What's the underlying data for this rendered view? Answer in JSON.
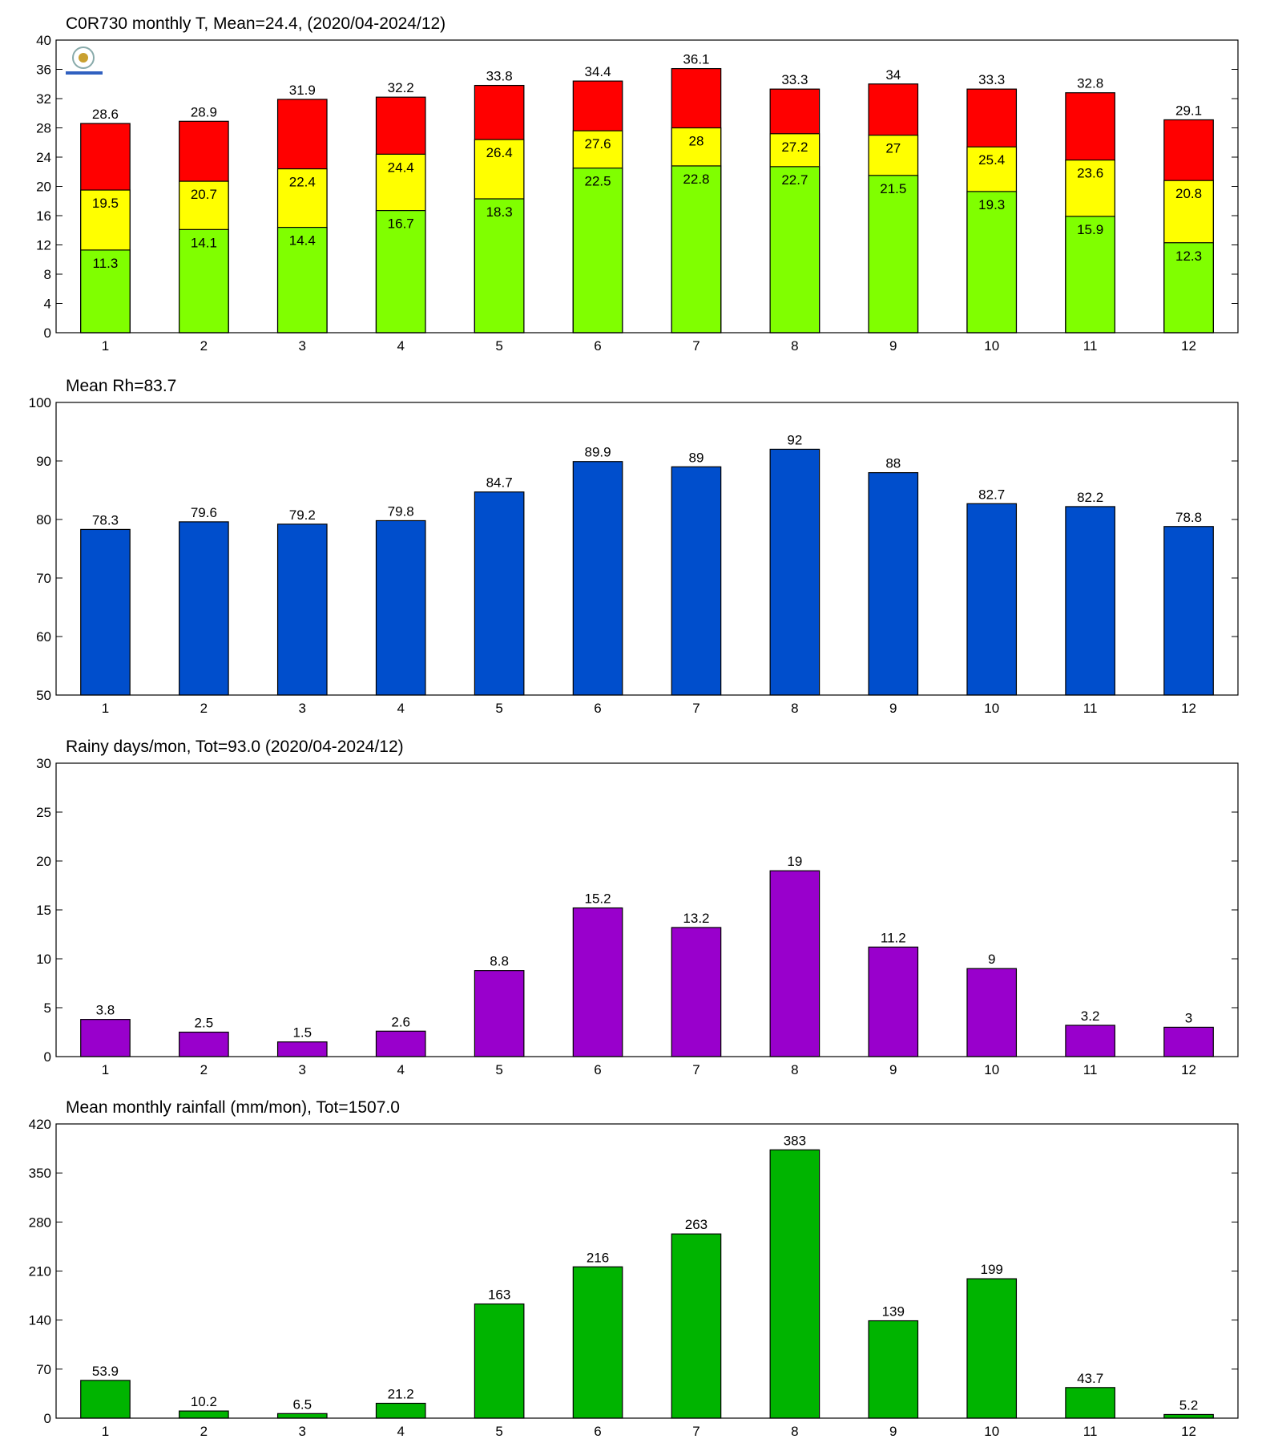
{
  "chart_data": [
    {
      "type": "bar",
      "overlay": true,
      "title": "C0R730 monthly T, Mean=24.4, (2020/04-2024/12)",
      "categories": [
        "1",
        "2",
        "3",
        "4",
        "5",
        "6",
        "7",
        "8",
        "9",
        "10",
        "11",
        "12"
      ],
      "series": [
        {
          "color": "#ff0000",
          "values": [
            28.6,
            28.9,
            31.9,
            32.2,
            33.8,
            34.4,
            36.1,
            33.3,
            34,
            33.3,
            32.8,
            29.1
          ]
        },
        {
          "color": "#ffff00",
          "values": [
            19.5,
            20.7,
            22.4,
            24.4,
            26.4,
            27.6,
            28,
            27.2,
            27,
            25.4,
            23.6,
            20.8
          ]
        },
        {
          "color": "#80ff00",
          "values": [
            11.3,
            14.1,
            14.4,
            16.7,
            18.3,
            22.5,
            22.8,
            22.7,
            21.5,
            19.3,
            15.9,
            12.3
          ]
        }
      ],
      "ylim": [
        0,
        40
      ],
      "yticks": [
        0,
        4,
        8,
        12,
        16,
        20,
        24,
        28,
        32,
        36,
        40
      ]
    },
    {
      "type": "bar",
      "title": "Mean Rh=83.7",
      "categories": [
        "1",
        "2",
        "3",
        "4",
        "5",
        "6",
        "7",
        "8",
        "9",
        "10",
        "11",
        "12"
      ],
      "values": [
        78.3,
        79.6,
        79.2,
        79.8,
        84.7,
        89.9,
        89,
        92,
        88,
        82.7,
        82.2,
        78.8
      ],
      "color": "#004ecc",
      "ylim": [
        50,
        100
      ],
      "yticks": [
        50,
        60,
        70,
        80,
        90,
        100
      ]
    },
    {
      "type": "bar",
      "title": "Rainy days/mon, Tot=93.0 (2020/04-2024/12)",
      "categories": [
        "1",
        "2",
        "3",
        "4",
        "5",
        "6",
        "7",
        "8",
        "9",
        "10",
        "11",
        "12"
      ],
      "values": [
        3.8,
        2.5,
        1.5,
        2.6,
        8.8,
        15.2,
        13.2,
        19,
        11.2,
        9,
        3.2,
        3
      ],
      "color": "#9900cc",
      "ylim": [
        0,
        30
      ],
      "yticks": [
        0,
        5,
        10,
        15,
        20,
        25,
        30
      ]
    },
    {
      "type": "bar",
      "title": "Mean monthly rainfall (mm/mon), Tot=1507.0",
      "categories": [
        "1",
        "2",
        "3",
        "4",
        "5",
        "6",
        "7",
        "8",
        "9",
        "10",
        "11",
        "12"
      ],
      "values": [
        53.9,
        10.2,
        6.5,
        21.2,
        163,
        216,
        263,
        383,
        139,
        199,
        43.7,
        5.2
      ],
      "color": "#00b400",
      "ylim": [
        0,
        420
      ],
      "yticks": [
        0,
        70,
        140,
        210,
        280,
        350,
        420
      ]
    }
  ]
}
